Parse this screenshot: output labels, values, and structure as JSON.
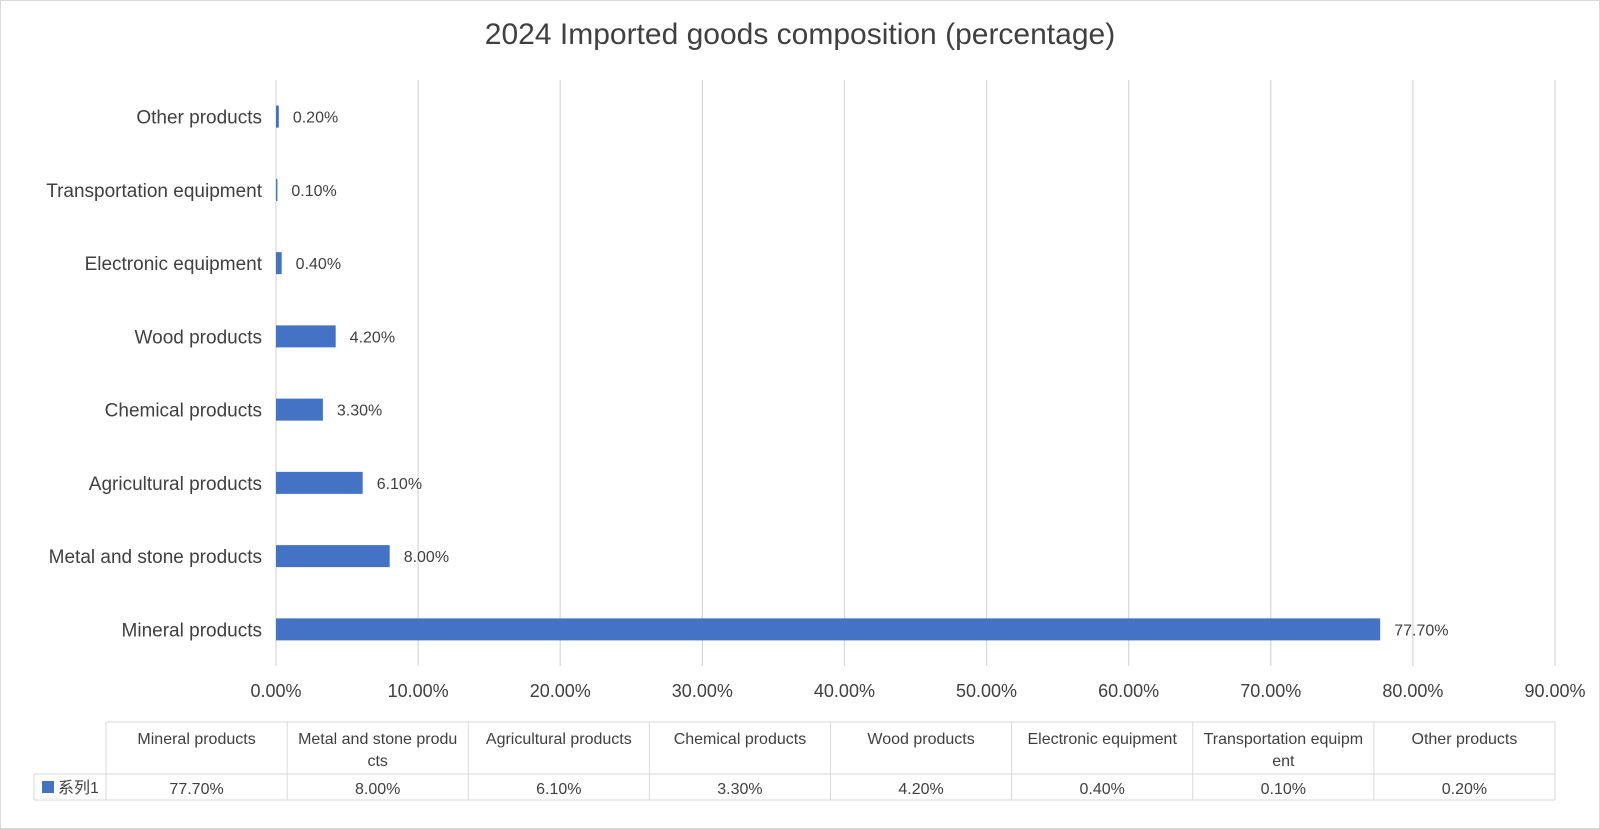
{
  "chart_data": {
    "type": "bar",
    "orientation": "horizontal",
    "title": "2024 Imported goods composition (percentage)",
    "categories": [
      "Mineral products",
      "Metal and stone products",
      "Agricultural products",
      "Chemical products",
      "Wood products",
      "Electronic equipment",
      "Transportation equipment",
      "Other products"
    ],
    "series": [
      {
        "name": "系列1",
        "values": [
          77.7,
          8.0,
          6.1,
          3.3,
          4.2,
          0.4,
          0.1,
          0.2
        ],
        "value_labels": [
          "77.70%",
          "8.00%",
          "6.10%",
          "3.30%",
          "4.20%",
          "0.40%",
          "0.10%",
          "0.20%"
        ]
      }
    ],
    "xlim": [
      0,
      90
    ],
    "x_ticks": [
      0,
      10,
      20,
      30,
      40,
      50,
      60,
      70,
      80,
      90
    ],
    "x_tick_labels": [
      "0.00%",
      "10.00%",
      "20.00%",
      "30.00%",
      "40.00%",
      "50.00%",
      "60.00%",
      "70.00%",
      "80.00%",
      "90.00%"
    ],
    "grid": "vertical",
    "legend": "none",
    "data_table": {
      "headers": [
        "Mineral products",
        "Metal and stone products",
        "Agricultural products",
        "Chemical products",
        "Wood products",
        "Electronic equipment",
        "Transportation equipment",
        "Other products"
      ],
      "header_wrapped": [
        [
          "Mineral products"
        ],
        [
          "Metal and stone produ",
          "cts"
        ],
        [
          "Agricultural products"
        ],
        [
          "Chemical products"
        ],
        [
          "Wood products"
        ],
        [
          "Electronic equipment"
        ],
        [
          "Transportation equipm",
          "ent"
        ],
        [
          "Other products"
        ]
      ],
      "row_label": "系列1",
      "values": [
        "77.70%",
        "8.00%",
        "6.10%",
        "3.30%",
        "4.20%",
        "0.40%",
        "0.10%",
        "0.20%"
      ]
    },
    "colors": {
      "bar": "#4472c4",
      "grid": "#d9d9d9",
      "text": "#404040"
    }
  }
}
